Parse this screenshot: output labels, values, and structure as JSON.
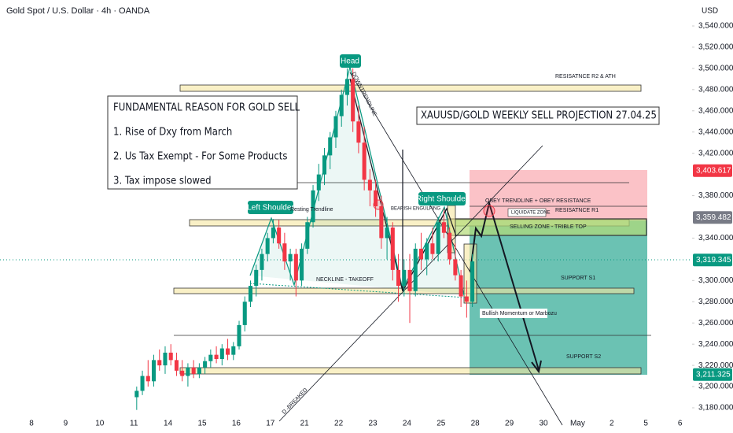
{
  "header": {
    "title": "Gold Spot / U.S. Dollar · 4h · OANDA",
    "currency": "USD"
  },
  "chart_data": {
    "type": "candlestick",
    "categories": [
      "8",
      "9",
      "10",
      "11",
      "14",
      "15",
      "16",
      "17",
      "21",
      "22",
      "23",
      "24",
      "25",
      "28",
      "29",
      "30",
      "May",
      "2",
      "5",
      "6"
    ],
    "up_color": "#089981",
    "down_color": "#f23645",
    "ohlc": [
      [],
      [],
      [],
      [
        [
          3190,
          3200,
          3178,
          3196
        ],
        [
          3196,
          3215,
          3192,
          3210
        ],
        [
          3210,
          3225,
          3200,
          3205
        ],
        [
          3205,
          3230,
          3200,
          3225
        ],
        [
          3225,
          3235,
          3215,
          3220
        ],
        [
          3220,
          3238,
          3212,
          3232
        ]
      ],
      [
        [
          3232,
          3240,
          3220,
          3225
        ],
        [
          3225,
          3232,
          3210,
          3215
        ],
        [
          3215,
          3225,
          3205,
          3210
        ],
        [
          3210,
          3222,
          3200,
          3218
        ],
        [
          3218,
          3225,
          3208,
          3212
        ],
        [
          3212,
          3222,
          3208,
          3218
        ]
      ],
      [
        [
          3218,
          3228,
          3212,
          3224
        ],
        [
          3224,
          3235,
          3218,
          3230
        ],
        [
          3230,
          3238,
          3222,
          3226
        ],
        [
          3226,
          3240,
          3220,
          3236
        ],
        [
          3236,
          3245,
          3225,
          3230
        ],
        [
          3230,
          3242,
          3225,
          3238
        ]
      ],
      [
        [
          3238,
          3262,
          3235,
          3258
        ],
        [
          3258,
          3285,
          3252,
          3280
        ],
        [
          3280,
          3300,
          3275,
          3295
        ],
        [
          3295,
          3315,
          3285,
          3310
        ],
        [
          3310,
          3330,
          3300,
          3325
        ],
        [
          3325,
          3345,
          3318,
          3340
        ]
      ],
      [
        [
          3340,
          3358,
          3335,
          3350
        ],
        [
          3350,
          3357,
          3330,
          3335
        ],
        [
          3335,
          3345,
          3310,
          3318
        ],
        [
          3318,
          3330,
          3300,
          3325
        ],
        [
          3325,
          3330,
          3285,
          3300
        ],
        [
          3300,
          3335,
          3295,
          3330
        ]
      ],
      [
        [
          3330,
          3360,
          3325,
          3355
        ],
        [
          3355,
          3390,
          3350,
          3385
        ],
        [
          3385,
          3410,
          3375,
          3400
        ],
        [
          3400,
          3425,
          3390,
          3418
        ],
        [
          3418,
          3440,
          3405,
          3435
        ],
        [
          3435,
          3460,
          3425,
          3455
        ]
      ],
      [
        [
          3455,
          3480,
          3445,
          3475
        ],
        [
          3475,
          3500,
          3465,
          3490
        ],
        [
          3490,
          3500,
          3440,
          3450
        ],
        [
          3450,
          3465,
          3420,
          3430
        ],
        [
          3430,
          3445,
          3385,
          3395
        ],
        [
          3395,
          3405,
          3370,
          3385
        ]
      ],
      [
        [
          3385,
          3395,
          3360,
          3370
        ],
        [
          3370,
          3380,
          3330,
          3340
        ],
        [
          3340,
          3360,
          3320,
          3350
        ],
        [
          3350,
          3355,
          3300,
          3310
        ],
        [
          3310,
          3325,
          3280,
          3295
        ],
        [
          3295,
          3320,
          3285,
          3310
        ]
      ],
      [
        [
          3310,
          3325,
          3260,
          3290
        ],
        [
          3290,
          3335,
          3285,
          3330
        ],
        [
          3330,
          3345,
          3310,
          3320
        ],
        [
          3320,
          3340,
          3305,
          3335
        ],
        [
          3335,
          3350,
          3320,
          3325
        ],
        [
          3325,
          3360,
          3318,
          3355
        ]
      ],
      [
        [
          3355,
          3368,
          3340,
          3345
        ],
        [
          3345,
          3350,
          3315,
          3320
        ],
        [
          3320,
          3335,
          3300,
          3305
        ],
        [
          3305,
          3310,
          3275,
          3285
        ],
        [
          3285,
          3300,
          3265,
          3280
        ],
        [
          3280,
          3325,
          3275,
          3318
        ]
      ],
      [],
      [],
      [],
      [],
      [],
      [],
      []
    ],
    "ylim": [
      3180,
      3540
    ],
    "yticks": [
      {
        "value": 3540,
        "label": "3,540.000"
      },
      {
        "value": 3520,
        "label": "3,520.000"
      },
      {
        "value": 3500,
        "label": "3,500.000"
      },
      {
        "value": 3480,
        "label": "3,480.000"
      },
      {
        "value": 3460,
        "label": "3,460.000"
      },
      {
        "value": 3440,
        "label": "3,440.000"
      },
      {
        "value": 3420,
        "label": "3,420.000"
      },
      {
        "value": 3380,
        "label": "3,380.000"
      },
      {
        "value": 3340,
        "label": "3,340.000"
      },
      {
        "value": 3300,
        "label": "3,300.000"
      },
      {
        "value": 3280,
        "label": "3,280.000"
      },
      {
        "value": 3260,
        "label": "3,260.000"
      },
      {
        "value": 3240,
        "label": "3,240.000"
      },
      {
        "value": 3220,
        "label": "3,220.000"
      },
      {
        "value": 3200,
        "label": "3,200.000"
      },
      {
        "value": 3180,
        "label": "3,180.000"
      }
    ],
    "price_tags": [
      {
        "value": 3403.617,
        "label": "3,403.617",
        "color": "#f23645"
      },
      {
        "value": 3359.482,
        "label": "3,359.482",
        "color": "#787b86"
      },
      {
        "value": 3319.345,
        "label": "3,319.345",
        "color": "#089981"
      },
      {
        "value": 3211.325,
        "label": "3,211.325",
        "color": "#089981"
      }
    ],
    "annotations": {
      "fundamental_title": "FUNDAMENTAL REASON FOR GOLD SELL",
      "reason_1": "1. Rise of Dxy from March",
      "reason_2": "2. Us Tax Exempt - For Some Products",
      "reason_3": "3. Tax impose slowed",
      "projection": "XAUUSD/GOLD WEEKLY SELL PROJECTION 27.04.25",
      "r2": "RESISATNCE R2 & ATH",
      "head": "Head",
      "left_shoulder": "Left Shoulder",
      "right_shoulder": "Right Shoulder",
      "downtrend": "DOWNTRENDLINE",
      "resting": "Resting Trendline",
      "engulfing": "BEARISH ENGULFING",
      "neckline": "NECKLINE - TAKEOFF",
      "obey": "OBEY TRENDLINE + OBEY RESISTANCE",
      "liquidate": "LIQUIDATE ZONE",
      "r1": "RESISATNCE R1",
      "selling": "SELLING ZONE - TRIBLE TOP",
      "s1": "SUPPORT S1",
      "momentum": "Bullish Momentum or Marbozu",
      "s2": "SUPPORT S2",
      "breaked": "D -BREAKED"
    }
  }
}
